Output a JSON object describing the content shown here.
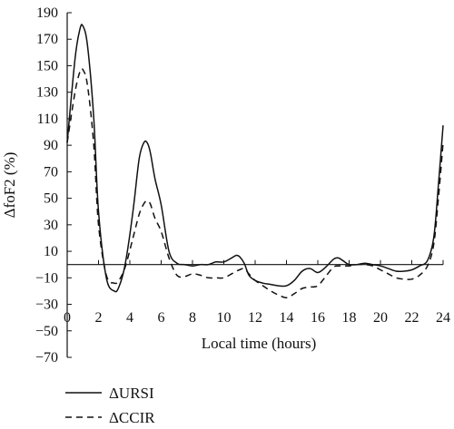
{
  "chart_data": {
    "type": "line",
    "xlabel": "Local time (hours)",
    "ylabel": "ΔfoF2 (%)",
    "xlim": [
      0,
      24
    ],
    "ylim": [
      -70,
      190
    ],
    "x_ticks": [
      0,
      2,
      4,
      6,
      8,
      10,
      12,
      14,
      16,
      18,
      20,
      22,
      24
    ],
    "y_ticks": [
      -70,
      -50,
      -30,
      -10,
      10,
      30,
      50,
      70,
      90,
      110,
      130,
      150,
      170,
      190
    ],
    "x_tick_labels": [
      "0",
      "2",
      "4",
      "6",
      "8",
      "10",
      "12",
      "14",
      "16",
      "18",
      "20",
      "22",
      "24"
    ],
    "y_tick_labels": [
      "−70",
      "−50",
      "−30",
      "−10",
      "10",
      "30",
      "50",
      "70",
      "90",
      "110",
      "130",
      "150",
      "170",
      "190"
    ],
    "zero_line": true,
    "grid": false,
    "legend_position": "bottom-left",
    "series": [
      {
        "name": "ΔURSI",
        "style": "solid",
        "color": "#111111",
        "x": [
          0,
          0.5,
          0.8,
          1.0,
          1.3,
          1.7,
          2.0,
          2.5,
          3.0,
          3.3,
          3.7,
          4.2,
          4.6,
          4.9,
          5.1,
          5.3,
          5.6,
          6.0,
          6.5,
          7.0,
          7.5,
          8.0,
          8.5,
          9.0,
          9.5,
          10.0,
          10.5,
          10.8,
          11.0,
          11.3,
          11.6,
          12.0,
          12.5,
          13.0,
          13.5,
          14.0,
          14.5,
          15.0,
          15.5,
          16.0,
          16.5,
          17.0,
          17.3,
          17.6,
          18.0,
          18.5,
          19.0,
          19.5,
          20.0,
          20.5,
          21.0,
          21.5,
          22.0,
          22.5,
          23.0,
          23.4,
          23.7,
          24.0
        ],
        "values": [
          92,
          155,
          177,
          180,
          165,
          110,
          40,
          -10,
          -20,
          -17,
          0,
          40,
          80,
          92,
          92,
          85,
          65,
          45,
          10,
          1,
          0,
          -1,
          0,
          0,
          2,
          2,
          5,
          7,
          6,
          1,
          -8,
          -12,
          -14,
          -15,
          -16,
          -16,
          -12,
          -5,
          -3,
          -6,
          -2,
          4,
          5,
          3,
          0,
          0,
          1,
          0,
          -1,
          -3,
          -5,
          -5,
          -4,
          -1,
          3,
          20,
          60,
          105
        ]
      },
      {
        "name": "ΔCCIR",
        "style": "dashed",
        "color": "#111111",
        "x": [
          0,
          0.5,
          0.8,
          1.0,
          1.3,
          1.7,
          2.0,
          2.5,
          3.0,
          3.3,
          3.7,
          4.2,
          4.6,
          4.9,
          5.1,
          5.3,
          5.6,
          6.0,
          6.5,
          7.0,
          7.5,
          8.0,
          8.5,
          9.0,
          9.5,
          10.0,
          10.5,
          10.8,
          11.0,
          11.3,
          11.6,
          12.0,
          12.5,
          13.0,
          13.5,
          14.0,
          14.5,
          15.0,
          15.5,
          16.0,
          16.5,
          17.0,
          17.3,
          17.6,
          18.0,
          18.5,
          19.0,
          19.5,
          20.0,
          20.5,
          21.0,
          21.5,
          22.0,
          22.5,
          23.0,
          23.4,
          23.7,
          24.0
        ],
        "values": [
          92,
          130,
          145,
          147,
          135,
          90,
          30,
          -8,
          -14,
          -12,
          -2,
          20,
          38,
          46,
          48,
          46,
          35,
          25,
          5,
          -8,
          -9,
          -7,
          -8,
          -10,
          -10,
          -10,
          -7,
          -5,
          -4,
          -3,
          -7,
          -12,
          -16,
          -20,
          -23,
          -25,
          -22,
          -18,
          -17,
          -16,
          -9,
          -2,
          -1,
          -1,
          -1,
          0,
          0,
          -1,
          -4,
          -7,
          -10,
          -11,
          -11,
          -8,
          -1,
          15,
          50,
          92
        ]
      }
    ]
  }
}
